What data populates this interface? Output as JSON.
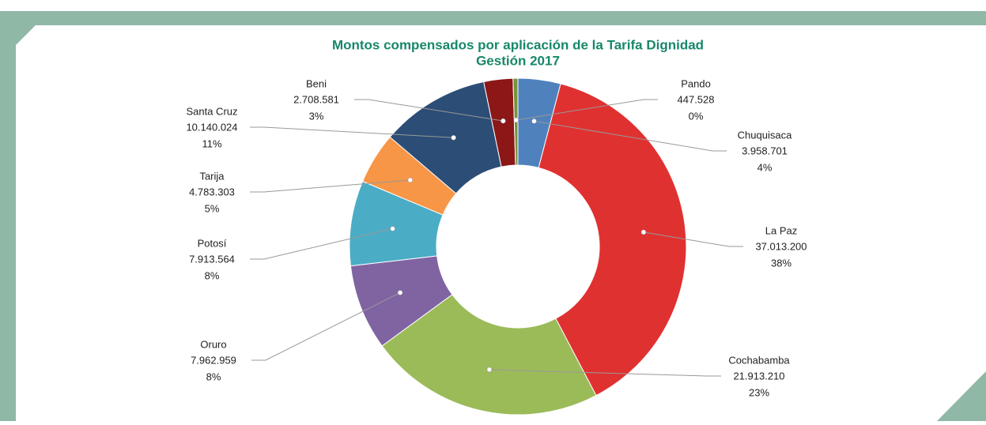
{
  "chart_data": {
    "type": "pie",
    "donut": true,
    "title": "Montos compensados por aplicación de la Tarifa Dignidad",
    "subtitle": "Gestión 2017",
    "categories": [
      "Chuquisaca",
      "La Paz",
      "Cochabamba",
      "Oruro",
      "Potosí",
      "Tarija",
      "Santa Cruz",
      "Beni",
      "Pando"
    ],
    "values": [
      3958701,
      37013200,
      21913210,
      7962959,
      7913564,
      4783303,
      10140024,
      2708581,
      447528
    ],
    "value_labels": [
      "3.958.701",
      "37.013.200",
      "21.913.210",
      "7.962.959",
      "7.913.564",
      "4.783.303",
      "10.140.024",
      "2.708.581",
      "447.528"
    ],
    "percent_labels": [
      "4%",
      "38%",
      "23%",
      "8%",
      "8%",
      "5%",
      "11%",
      "3%",
      "0%"
    ],
    "colors": [
      "#4f81bd",
      "#e03131",
      "#9bbb59",
      "#8064a2",
      "#4bacc6",
      "#f79646",
      "#2c4d75",
      "#8b1717",
      "#77933c"
    ]
  }
}
